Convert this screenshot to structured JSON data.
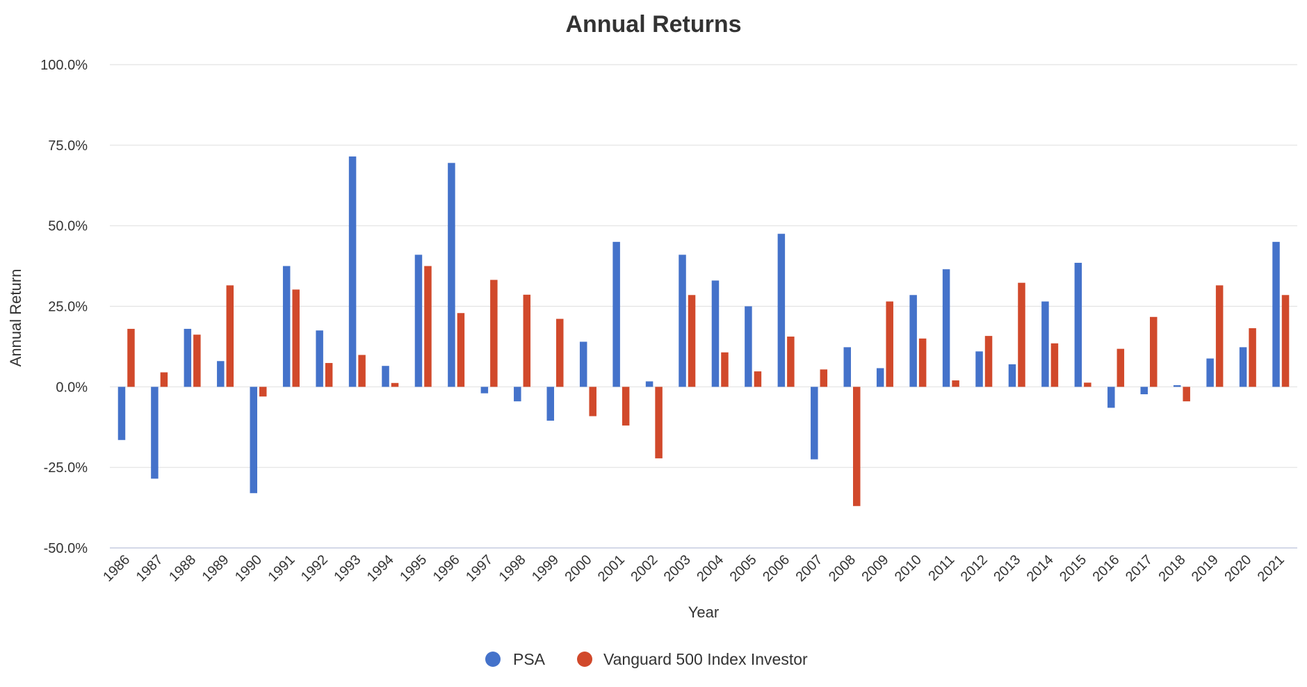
{
  "chart_data": {
    "type": "bar",
    "title": "Annual Returns",
    "xlabel": "Year",
    "ylabel": "Annual Return",
    "ylim": [
      -50,
      100
    ],
    "y_ticks": [
      "100.0%",
      "75.0%",
      "50.0%",
      "25.0%",
      "0.0%",
      "-25.0%",
      "-50.0%"
    ],
    "y_tick_values": [
      100,
      75,
      50,
      25,
      0,
      -25,
      -50
    ],
    "grid": true,
    "legend_position": "bottom-center",
    "categories": [
      "1986",
      "1987",
      "1988",
      "1989",
      "1990",
      "1991",
      "1992",
      "1993",
      "1994",
      "1995",
      "1996",
      "1997",
      "1998",
      "1999",
      "2000",
      "2001",
      "2002",
      "2003",
      "2004",
      "2005",
      "2006",
      "2007",
      "2008",
      "2009",
      "2010",
      "2011",
      "2012",
      "2013",
      "2014",
      "2015",
      "2016",
      "2017",
      "2018",
      "2019",
      "2020",
      "2021"
    ],
    "series": [
      {
        "name": "PSA",
        "color": "#4472CA",
        "values": [
          -16.5,
          -28.5,
          18.0,
          8.0,
          -33.0,
          37.5,
          17.5,
          71.5,
          6.5,
          41.0,
          69.5,
          -2.0,
          -4.5,
          -10.5,
          14.0,
          45.0,
          1.7,
          41.0,
          33.0,
          25.0,
          47.5,
          -22.5,
          12.3,
          5.8,
          28.5,
          36.5,
          11.0,
          7.0,
          26.5,
          38.5,
          -6.5,
          -2.3,
          0.5,
          8.8,
          12.3,
          45.0
        ]
      },
      {
        "name": "Vanguard 500 Index Investor",
        "color": "#D1492B",
        "values": [
          18.0,
          4.5,
          16.2,
          31.5,
          -3.0,
          30.2,
          7.4,
          9.9,
          1.2,
          37.5,
          22.9,
          33.2,
          28.6,
          21.1,
          -9.1,
          -12.0,
          -22.2,
          28.5,
          10.7,
          4.8,
          15.6,
          5.4,
          -37.0,
          26.5,
          15.0,
          2.0,
          15.8,
          32.3,
          13.5,
          1.3,
          11.8,
          21.7,
          -4.5,
          31.5,
          18.2,
          28.5
        ]
      }
    ]
  }
}
